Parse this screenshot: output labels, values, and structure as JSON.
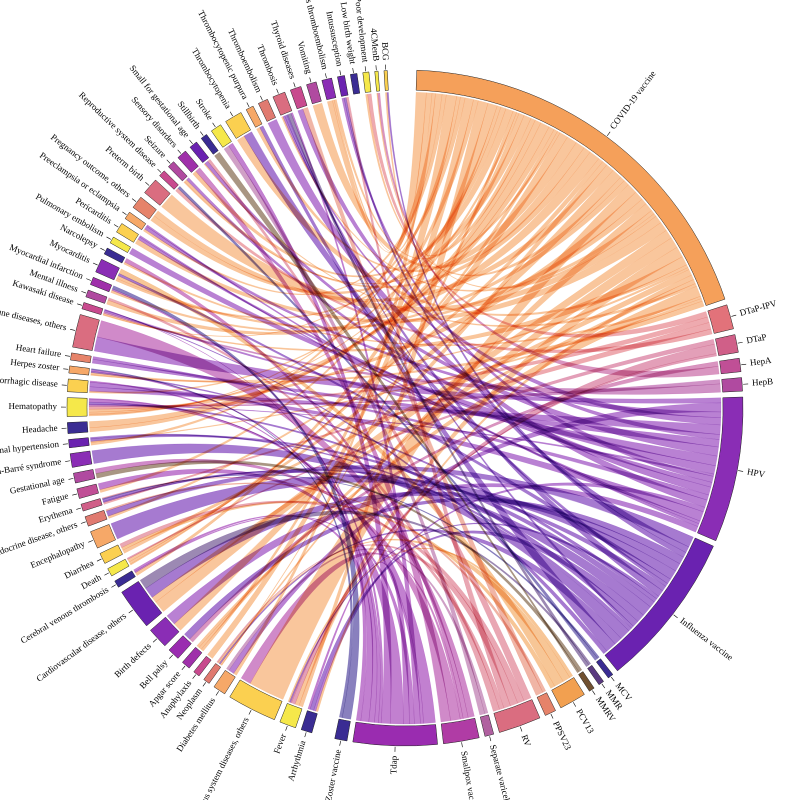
{
  "chart_data": {
    "type": "chord",
    "vaccines": [
      {
        "name": "COVID-19 vaccine",
        "size": 36,
        "color": "#f5a05a"
      },
      {
        "name": "DTaP-IPV",
        "size": 2.2,
        "color": "#e2727a"
      },
      {
        "name": "DTaP",
        "size": 1.6,
        "color": "#d05f88"
      },
      {
        "name": "HepA",
        "size": 1.2,
        "color": "#c04f96"
      },
      {
        "name": "HepB",
        "size": 1.2,
        "color": "#b04aa0"
      },
      {
        "name": "HPV",
        "size": 13,
        "color": "#8a2db5"
      },
      {
        "name": "Influenza vaccine",
        "size": 14,
        "color": "#6a22b0"
      },
      {
        "name": "MCV",
        "size": 0.5,
        "color": "#3a2c93"
      },
      {
        "name": "MMR",
        "size": 0.5,
        "color": "#5a3a80"
      },
      {
        "name": "MMRV",
        "size": 0.5,
        "color": "#705030"
      },
      {
        "name": "PCV13",
        "size": 2.4,
        "color": "#f2a050"
      },
      {
        "name": "PPSV23",
        "size": 1,
        "color": "#e6836a"
      },
      {
        "name": "RV",
        "size": 3.8,
        "color": "#da6d80"
      },
      {
        "name": "Separate varicella vaccine",
        "size": 0.8,
        "color": "#b060a0"
      },
      {
        "name": "Smallpox vaccine",
        "size": 3.2,
        "color": "#b03ca5"
      },
      {
        "name": "Tdap",
        "size": 7.5,
        "color": "#9a2cb0"
      },
      {
        "name": "Zoster vaccine",
        "size": 1.1,
        "color": "#3a2c93"
      }
    ],
    "events": [
      {
        "name": "Arrhythmia",
        "size": 2,
        "color": "#3a2c93"
      },
      {
        "name": "Fever",
        "size": 3,
        "color": "#f5e84a"
      },
      {
        "name": "Nervous system diseases, others",
        "size": 9,
        "color": "#fbd050"
      },
      {
        "name": "Diabetes mellitus",
        "size": 2.3,
        "color": "#f6a868"
      },
      {
        "name": "Neoplasm",
        "size": 1.2,
        "color": "#e07a70"
      },
      {
        "name": "Anaphylaxis",
        "size": 1.2,
        "color": "#c84a8e"
      },
      {
        "name": "Apgar score",
        "size": 1.6,
        "color": "#9f30aa"
      },
      {
        "name": "Bell palsy",
        "size": 2.2,
        "color": "#9a2cb0"
      },
      {
        "name": "Birth defects",
        "size": 3.8,
        "color": "#8a2db5"
      },
      {
        "name": "Cardiovascular disease, others",
        "size": 7.5,
        "color": "#6a22b0"
      },
      {
        "name": "Cerebral venous thrombosis",
        "size": 1.3,
        "color": "#3a2c93"
      },
      {
        "name": "Death",
        "size": 1.5,
        "color": "#f5e84a"
      },
      {
        "name": "Diarrhea",
        "size": 2,
        "color": "#fbd050"
      },
      {
        "name": "Encephalopathy",
        "size": 3.2,
        "color": "#f6a868"
      },
      {
        "name": "Endocrine disease, others",
        "size": 1.8,
        "color": "#e07a70"
      },
      {
        "name": "Erythema",
        "size": 1.3,
        "color": "#d05f88"
      },
      {
        "name": "Fatigue",
        "size": 1.8,
        "color": "#c04f96"
      },
      {
        "name": "Gestational age",
        "size": 1.8,
        "color": "#b04aa0"
      },
      {
        "name": "Guillain-Barré syndrome",
        "size": 2.5,
        "color": "#8a2db5"
      },
      {
        "name": "Gestational hypertension",
        "size": 1.5,
        "color": "#6a22b0"
      },
      {
        "name": "Headache",
        "size": 2,
        "color": "#3a2c93"
      },
      {
        "name": "Hematopathy",
        "size": 3.4,
        "color": "#f5e84a"
      },
      {
        "name": "Hemorrhagic disease",
        "size": 2.3,
        "color": "#fbd050"
      },
      {
        "name": "Herpes zoster",
        "size": 1.3,
        "color": "#f6a868"
      },
      {
        "name": "Heart failure",
        "size": 1.3,
        "color": "#e6836a"
      },
      {
        "name": "Immune diseases, others",
        "size": 6,
        "color": "#da6d80"
      },
      {
        "name": "Kawasaki disease",
        "size": 1.2,
        "color": "#c84a8e"
      },
      {
        "name": "Mental illness",
        "size": 1.3,
        "color": "#b04aa0"
      },
      {
        "name": "Myocardial infarction",
        "size": 1.4,
        "color": "#9f30aa"
      },
      {
        "name": "Myocarditis",
        "size": 2.5,
        "color": "#8a2db5"
      },
      {
        "name": "Narcolepsy",
        "size": 1.2,
        "color": "#3a2c93"
      },
      {
        "name": "Pulmonary embolism",
        "size": 1.2,
        "color": "#f5e84a"
      },
      {
        "name": "Pericarditis",
        "size": 1.8,
        "color": "#fbd050"
      },
      {
        "name": "Preeclampsia or eclampsia",
        "size": 1.4,
        "color": "#f6a868"
      },
      {
        "name": "Pregnancy outcome, others",
        "size": 2.3,
        "color": "#e6836a"
      },
      {
        "name": "Preterm birth",
        "size": 3,
        "color": "#da6d80"
      },
      {
        "name": "Reproductive system disease",
        "size": 1.2,
        "color": "#c84a8e"
      },
      {
        "name": "Seizure",
        "size": 1.3,
        "color": "#b04aa0"
      },
      {
        "name": "Sensory disorders",
        "size": 1.8,
        "color": "#9f30aa"
      },
      {
        "name": "Small for gestational age",
        "size": 1.5,
        "color": "#6a22b0"
      },
      {
        "name": "Stillbirth",
        "size": 1.2,
        "color": "#3a2c93"
      },
      {
        "name": "Stroke",
        "size": 2,
        "color": "#f5e84a"
      },
      {
        "name": "Thrombocytopenia",
        "size": 3.2,
        "color": "#fbd050"
      },
      {
        "name": "Thrombocytopenic purpura",
        "size": 1.4,
        "color": "#f6a868"
      },
      {
        "name": "Thromboembolism",
        "size": 1.8,
        "color": "#e07a70"
      },
      {
        "name": "Thrombosis",
        "size": 2.3,
        "color": "#da6d80"
      },
      {
        "name": "Thyroid diseases",
        "size": 2,
        "color": "#c84a8e"
      },
      {
        "name": "Vomiting",
        "size": 1.8,
        "color": "#b04aa0"
      },
      {
        "name": "Venous thromboembolism",
        "size": 1.8,
        "color": "#8a2db5"
      },
      {
        "name": "Intussusception",
        "size": 1.3,
        "color": "#6a22b0"
      },
      {
        "name": "Low birth weight",
        "size": 1.2,
        "color": "#3a2c93"
      },
      {
        "name": "Poor development",
        "size": 1.1,
        "color": "#f5e84a"
      },
      {
        "name": "4CMenB",
        "size": 0.6,
        "color": "#f5e84a"
      },
      {
        "name": "BCG",
        "size": 0.6,
        "color": "#fbd050"
      }
    ]
  }
}
